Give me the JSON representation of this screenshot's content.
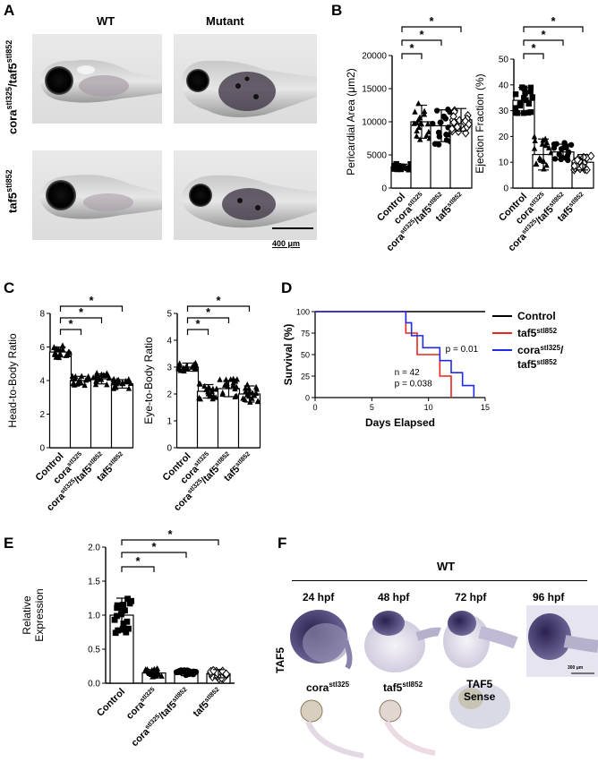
{
  "panels": {
    "A": {
      "label": "A",
      "col_wt": "WT",
      "col_mutant": "Mutant",
      "row1_main": "cora",
      "row1_sup1": "stl325",
      "row1_mid": "/taf5",
      "row1_sup2": "stl852",
      "row2_main": "taf5",
      "row2_sup": "stl852",
      "scale": "400 μm"
    },
    "B": {
      "label": "B"
    },
    "C": {
      "label": "C"
    },
    "D": {
      "label": "D"
    },
    "E": {
      "label": "E"
    },
    "F": {
      "label": "F",
      "wt": "WT",
      "stages": [
        "24 hpf",
        "48 hpf",
        "72 hpf",
        "96 hpf"
      ],
      "row_label": "TAF5",
      "scale": "300 μm",
      "mut1_main": "cora",
      "mut1_sup": "stl325",
      "mut2_main": "taf5",
      "mut2_sup": "stl852",
      "sense_line1": "TAF5",
      "sense_line2": "Sense"
    }
  },
  "sig_marker": "*",
  "categories": {
    "control": "Control",
    "cora_main": "cora",
    "cora_sup": "stl325",
    "double_a": "cora",
    "double_sup1": "stl325",
    "double_b": "/taf5",
    "double_sup2": "stl852",
    "taf5_main": "taf5",
    "taf5_sup": "stl852"
  },
  "chart_data": [
    {
      "panel": "B-left",
      "type": "bar",
      "categories": [
        "Control",
        "cora stl325",
        "cora stl325 / taf5 stl852",
        "taf5 stl852"
      ],
      "values": [
        3200,
        10000,
        9400,
        10300
      ],
      "errors": [
        400,
        2500,
        2400,
        1700
      ],
      "ylabel": "Pericardial Area (μm2)",
      "ylim": [
        0,
        20000
      ],
      "yticks": [
        0,
        5000,
        10000,
        15000,
        20000
      ],
      "markers": [
        "square",
        "triangle",
        "circle",
        "diamond"
      ]
    },
    {
      "panel": "B-right",
      "type": "bar",
      "categories": [
        "Control",
        "cora stl325",
        "cora stl325 / taf5 stl852",
        "taf5 stl852"
      ],
      "values": [
        34,
        13,
        14,
        10
      ],
      "errors": [
        5,
        6,
        3,
        3
      ],
      "ylabel": "Ejection Fraction (%)",
      "ylim": [
        0,
        50
      ],
      "yticks": [
        0,
        10,
        20,
        30,
        40,
        50
      ],
      "markers": [
        "square",
        "triangle",
        "circle",
        "diamond"
      ]
    },
    {
      "panel": "C-left",
      "type": "bar",
      "categories": [
        "Control",
        "cora stl325",
        "cora stl325 / taf5 stl852",
        "taf5 stl852"
      ],
      "values": [
        5.7,
        4.0,
        4.1,
        3.8
      ],
      "errors": [
        0.3,
        0.25,
        0.3,
        0.25
      ],
      "ylabel": "Head-to-Body Ratio",
      "ylim": [
        0,
        8
      ],
      "yticks": [
        0,
        2,
        4,
        6,
        8
      ],
      "markers": [
        "triangle",
        "triangle",
        "triangle",
        "triangle"
      ]
    },
    {
      "panel": "C-right",
      "type": "bar",
      "categories": [
        "Control",
        "cora stl325",
        "cora stl325 / taf5 stl852",
        "taf5 stl852"
      ],
      "values": [
        3.0,
        2.1,
        2.2,
        2.0
      ],
      "errors": [
        0.15,
        0.25,
        0.3,
        0.3
      ],
      "ylabel": "Eye-to-Body Ratio",
      "ylim": [
        0,
        5
      ],
      "yticks": [
        0,
        1,
        2,
        3,
        4,
        5
      ],
      "markers": [
        "triangle",
        "triangle",
        "triangle",
        "triangle"
      ]
    },
    {
      "panel": "D",
      "type": "line",
      "xlabel": "Days Elapsed",
      "ylabel": "Survival (%)",
      "xlim": [
        0,
        15
      ],
      "ylim": [
        0,
        100
      ],
      "xticks": [
        0,
        5,
        10,
        15
      ],
      "yticks": [
        0,
        25,
        50,
        75,
        100
      ],
      "series": [
        {
          "name": "Control",
          "color": "#000000",
          "x": [
            0,
            15
          ],
          "y": [
            100,
            100
          ]
        },
        {
          "name": "taf5 stl852",
          "color": "#e8251f",
          "x": [
            0,
            8,
            8,
            9,
            9,
            10,
            10,
            11,
            11,
            12,
            12
          ],
          "y": [
            100,
            100,
            75,
            75,
            50,
            50,
            50,
            50,
            25,
            25,
            0
          ]
        },
        {
          "name": "cora stl325 / taf5 stl852",
          "color": "#1f2de0",
          "x": [
            0,
            8,
            8,
            8.5,
            8.5,
            9.5,
            9.5,
            11,
            11,
            12,
            12,
            13,
            13,
            14,
            14
          ],
          "y": [
            100,
            100,
            87,
            87,
            72,
            72,
            58,
            58,
            43,
            43,
            29,
            29,
            14,
            14,
            0
          ]
        }
      ],
      "annotations": {
        "p1": "p = 0.01",
        "n": "n = 42",
        "p2": "p = 0.038"
      },
      "legend": {
        "control": "Control",
        "taf5_main": "taf5",
        "taf5_sup": "stl852",
        "cora_main": "cora",
        "cora_sup": "stl325",
        "cora_slash": "/",
        "taf5b_main": "taf5",
        "taf5b_sup": "stl852"
      }
    },
    {
      "panel": "E",
      "type": "bar",
      "categories": [
        "Control",
        "cora stl325",
        "cora stl325 / taf5 stl852",
        "taf5 stl852"
      ],
      "values": [
        1.0,
        0.15,
        0.15,
        0.14
      ],
      "errors": [
        0.25,
        0.05,
        0.04,
        0.06
      ],
      "ylabel_line1": "Relative",
      "ylabel_line2": "Expression",
      "ylim": [
        0,
        2.0
      ],
      "yticks": [
        "0.0",
        "0.5",
        "1.0",
        "1.5",
        "2.0"
      ],
      "markers": [
        "square",
        "triangle",
        "circle",
        "diamond"
      ]
    }
  ]
}
